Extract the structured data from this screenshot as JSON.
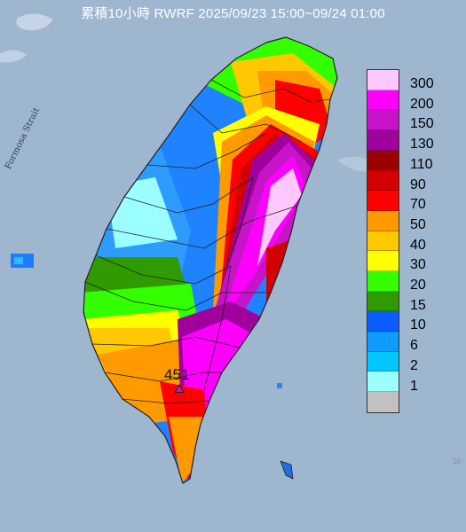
{
  "title": "累積10小時 RWRF 2025/09/23 15:00~09/24 01:00",
  "map": {
    "strait_label": "Formosa Strait",
    "max_value_label": "451",
    "corner_mark": "10"
  },
  "legend": {
    "unit_steps": [
      {
        "label": "300",
        "color": "#ffc7ff"
      },
      {
        "label": "200",
        "color": "#ff00ff"
      },
      {
        "label": "150",
        "color": "#c814c8"
      },
      {
        "label": "130",
        "color": "#a0009c"
      },
      {
        "label": "110",
        "color": "#9b0000"
      },
      {
        "label": "90",
        "color": "#d20000"
      },
      {
        "label": "70",
        "color": "#ff0000"
      },
      {
        "label": "50",
        "color": "#ff9a00"
      },
      {
        "label": "40",
        "color": "#ffc800"
      },
      {
        "label": "30",
        "color": "#ffff00"
      },
      {
        "label": "20",
        "color": "#33ff00"
      },
      {
        "label": "15",
        "color": "#309b00"
      },
      {
        "label": "10",
        "color": "#0a5dff"
      },
      {
        "label": "6",
        "color": "#0f9bff"
      },
      {
        "label": "2",
        "color": "#00c8ff"
      },
      {
        "label": "1",
        "color": "#9bffff"
      },
      {
        "label": "",
        "color": "#c1c1c1"
      }
    ]
  },
  "colors": {
    "sea": "#9fb6cf",
    "county_border": "#222222"
  }
}
